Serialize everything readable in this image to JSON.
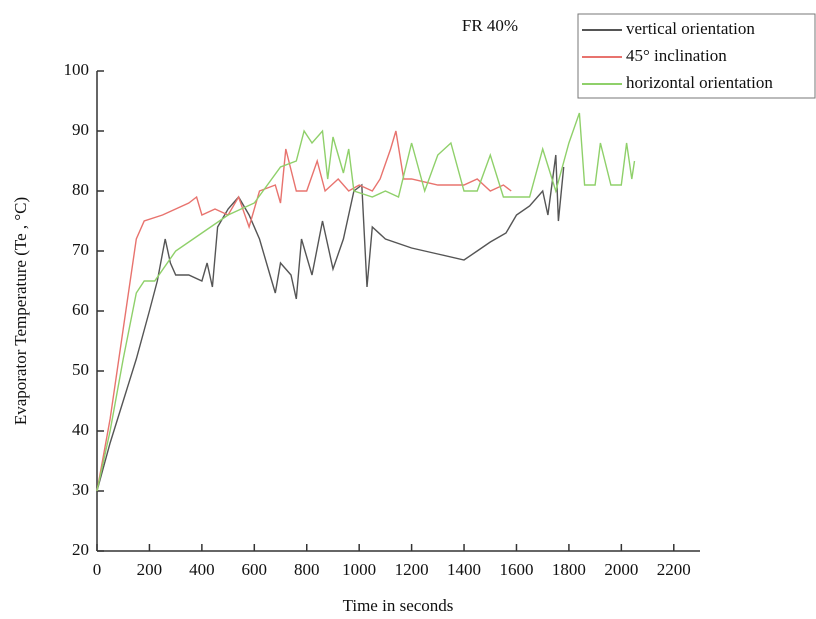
{
  "chart_data": {
    "type": "line",
    "title": "FR 40%",
    "x_label": "Time in seconds",
    "y_label": "Evaporator Temperature (Te , °C)",
    "xlim": [
      0,
      2300
    ],
    "ylim": [
      20,
      100
    ],
    "xticks": [
      0,
      200,
      400,
      600,
      800,
      1000,
      1200,
      1400,
      1600,
      1800,
      2000,
      2200
    ],
    "yticks": [
      20,
      30,
      40,
      50,
      60,
      70,
      80,
      90,
      100
    ],
    "legend": "upper right",
    "series": [
      {
        "name": "vertical orientation",
        "color": "#555555",
        "x": [
          0,
          50,
          100,
          150,
          200,
          230,
          260,
          280,
          300,
          350,
          400,
          420,
          440,
          460,
          500,
          540,
          580,
          620,
          660,
          680,
          700,
          740,
          760,
          780,
          820,
          860,
          900,
          940,
          980,
          1010,
          1030,
          1050,
          1100,
          1200,
          1300,
          1400,
          1450,
          1500,
          1560,
          1600,
          1650,
          1700,
          1720,
          1750,
          1760,
          1780
        ],
        "values": [
          30,
          38,
          45,
          52,
          60,
          65,
          72,
          68,
          66,
          66,
          65,
          68,
          64,
          74,
          77,
          79,
          76,
          72,
          66,
          63,
          68,
          66,
          62,
          72,
          66,
          75,
          67,
          72,
          80,
          81,
          64,
          74,
          72,
          70.5,
          69.5,
          68.5,
          70,
          71.5,
          73,
          76,
          77.5,
          80,
          76,
          86,
          75,
          84
        ]
      },
      {
        "name": "45° inclination",
        "color": "#e8736e",
        "x": [
          0,
          50,
          100,
          150,
          180,
          250,
          350,
          380,
          400,
          450,
          500,
          540,
          580,
          620,
          680,
          700,
          720,
          760,
          800,
          840,
          870,
          920,
          960,
          1000,
          1050,
          1080,
          1120,
          1140,
          1170,
          1200,
          1300,
          1400,
          1450,
          1500,
          1550,
          1580
        ],
        "values": [
          30,
          42,
          57,
          72,
          75,
          76,
          78,
          79,
          76,
          77,
          76,
          79,
          74,
          80,
          81,
          78,
          87,
          80,
          80,
          85,
          80,
          82,
          80,
          81,
          80,
          82,
          87,
          90,
          82,
          82,
          81,
          81,
          82,
          80,
          81,
          80
        ]
      },
      {
        "name": "horizontal orientation",
        "color": "#8fd06a",
        "x": [
          0,
          50,
          100,
          150,
          180,
          220,
          300,
          400,
          500,
          600,
          700,
          760,
          790,
          820,
          860,
          880,
          900,
          940,
          960,
          980,
          1050,
          1100,
          1150,
          1200,
          1250,
          1300,
          1350,
          1400,
          1450,
          1500,
          1550,
          1650,
          1700,
          1750,
          1800,
          1840,
          1860,
          1900,
          1920,
          1960,
          2000,
          2020,
          2040,
          2050
        ],
        "values": [
          30,
          40,
          52,
          63,
          65,
          65,
          70,
          73,
          76,
          78,
          84,
          85,
          90,
          88,
          90,
          82,
          89,
          83,
          87,
          80,
          79,
          80,
          79,
          88,
          80,
          86,
          88,
          80,
          80,
          86,
          79,
          79,
          87,
          80,
          88,
          93,
          81,
          81,
          88,
          81,
          81,
          88,
          82,
          85
        ]
      }
    ]
  }
}
